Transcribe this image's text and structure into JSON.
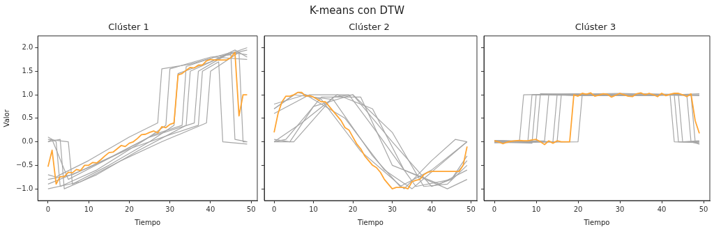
{
  "chart_data": [
    {
      "type": "other",
      "title": "K-means con DTW"
    },
    {
      "type": "line",
      "title": "Clúster 1",
      "xlabel": "Tiempo",
      "ylabel": "Valor",
      "xlim": [
        -2.5,
        51.5
      ],
      "ylim": [
        -1.25,
        2.25
      ],
      "xticks": [
        0,
        10,
        20,
        30,
        40,
        50
      ],
      "yticks": [
        {
          "value": -1,
          "label": "−1.0"
        },
        {
          "value": -0.5,
          "label": "−0.5"
        },
        {
          "value": 0,
          "label": "0.0"
        },
        {
          "value": 0.5,
          "label": "0.5"
        },
        {
          "value": 1,
          "label": "1.0"
        },
        {
          "value": 1.5,
          "label": "1.5"
        },
        {
          "value": 2,
          "label": "2.0"
        }
      ],
      "x": [
        0,
        1,
        2,
        3,
        4,
        5,
        6,
        7,
        8,
        9,
        10,
        11,
        12,
        13,
        14,
        15,
        16,
        17,
        18,
        19,
        20,
        21,
        22,
        23,
        24,
        25,
        26,
        27,
        28,
        29,
        30,
        31,
        32,
        33,
        34,
        35,
        36,
        37,
        38,
        39,
        40,
        41,
        42,
        43,
        44,
        45,
        46,
        47,
        48,
        49
      ],
      "series": [
        {
          "color": "#a6a6a6",
          "x": [
            0,
            2,
            3,
            10,
            20,
            27,
            28,
            35,
            45,
            49
          ],
          "values": [
            -0.7,
            -0.75,
            -0.7,
            -0.4,
            0.1,
            0.4,
            1.55,
            1.65,
            1.9,
            1.85
          ]
        },
        {
          "color": "#a6a6a6",
          "x": [
            0,
            5,
            6,
            15,
            25,
            31,
            32,
            40,
            46,
            49
          ],
          "values": [
            0.05,
            0.0,
            -0.9,
            -0.5,
            0.0,
            0.35,
            1.45,
            1.7,
            1.95,
            1.8
          ]
        },
        {
          "color": "#a6a6a6",
          "x": [
            0,
            3,
            4,
            12,
            22,
            34,
            35,
            44,
            49
          ],
          "values": [
            0.0,
            0.05,
            -1.0,
            -0.7,
            -0.2,
            0.35,
            1.5,
            1.85,
            2.0
          ]
        },
        {
          "color": "#a6a6a6",
          "x": [
            0,
            10,
            20,
            30,
            37,
            38,
            42,
            43,
            49
          ],
          "values": [
            -0.9,
            -0.55,
            -0.15,
            0.15,
            0.35,
            1.5,
            1.7,
            0.0,
            -0.05
          ]
        },
        {
          "color": "#a6a6a6",
          "x": [
            0,
            2,
            3,
            12,
            24,
            29,
            30,
            40,
            45,
            46,
            49
          ],
          "values": [
            0.1,
            0.0,
            -0.95,
            -0.6,
            0.05,
            0.35,
            1.55,
            1.8,
            1.85,
            0.05,
            0.0
          ]
        },
        {
          "color": "#a6a6a6",
          "x": [
            0,
            8,
            18,
            28,
            39,
            40,
            47,
            48,
            49
          ],
          "values": [
            -1.0,
            -0.85,
            -0.4,
            0.0,
            0.4,
            1.5,
            1.9,
            0.0,
            0.0
          ]
        },
        {
          "color": "#a6a6a6",
          "x": [
            0,
            6,
            16,
            26,
            33,
            34,
            41,
            49
          ],
          "values": [
            -0.8,
            -0.7,
            -0.3,
            0.15,
            0.35,
            1.6,
            1.8,
            1.75
          ]
        },
        {
          "color": "#a6a6a6",
          "x": [
            0,
            1,
            5,
            14,
            25,
            36,
            37,
            44,
            49
          ],
          "values": [
            0.0,
            0.05,
            -0.8,
            -0.4,
            0.1,
            0.4,
            1.5,
            1.85,
            1.95
          ]
        },
        {
          "color": "#ffa533",
          "values": [
            -0.53,
            -0.18,
            -0.9,
            -0.74,
            -0.74,
            -0.65,
            -0.66,
            -0.59,
            -0.61,
            -0.5,
            -0.5,
            -0.44,
            -0.45,
            -0.38,
            -0.3,
            -0.23,
            -0.22,
            -0.15,
            -0.08,
            -0.1,
            -0.03,
            0.0,
            0.07,
            0.15,
            0.16,
            0.2,
            0.23,
            0.19,
            0.32,
            0.3,
            0.37,
            0.4,
            1.42,
            1.45,
            1.52,
            1.58,
            1.57,
            1.63,
            1.63,
            1.72,
            1.75,
            1.74,
            1.74,
            1.74,
            1.74,
            1.79,
            1.9,
            0.55,
            1.0,
            1.0
          ]
        }
      ]
    },
    {
      "type": "line",
      "title": "Clúster 2",
      "xlabel": "Tiempo",
      "xlim": [
        -2.5,
        51.5
      ],
      "ylim": [
        -1.25,
        2.25
      ],
      "xticks": [
        0,
        10,
        20,
        30,
        40,
        50
      ],
      "yticks": [
        {
          "value": -1,
          "label": null
        },
        {
          "value": -0.5,
          "label": null
        },
        {
          "value": 0,
          "label": null
        },
        {
          "value": 0.5,
          "label": null
        },
        {
          "value": 1,
          "label": null
        },
        {
          "value": 1.5,
          "label": null
        },
        {
          "value": 2,
          "label": null
        }
      ],
      "tick_labels": "x",
      "x": [
        0,
        1,
        2,
        3,
        4,
        5,
        6,
        7,
        8,
        9,
        10,
        11,
        12,
        13,
        14,
        15,
        16,
        17,
        18,
        19,
        20,
        21,
        22,
        23,
        24,
        25,
        26,
        27,
        28,
        29,
        30,
        31,
        32,
        33,
        34,
        35,
        36,
        37,
        38,
        39,
        40,
        41,
        42,
        43,
        44,
        45,
        46,
        47,
        48,
        49
      ],
      "series": [
        {
          "color": "#a6a6a6",
          "x": [
            0,
            5,
            15,
            25,
            32,
            40,
            49
          ],
          "values": [
            0.7,
            1.0,
            0.9,
            -0.3,
            -0.95,
            -0.6,
            0.0
          ]
        },
        {
          "color": "#a6a6a6",
          "x": [
            0,
            5,
            15,
            20,
            30,
            38,
            44,
            49
          ],
          "values": [
            0.0,
            0.0,
            0.95,
            1.0,
            0.2,
            -0.95,
            -0.9,
            -0.5
          ]
        },
        {
          "color": "#a6a6a6",
          "x": [
            0,
            8,
            18,
            28,
            35,
            42,
            49
          ],
          "values": [
            0.8,
            1.0,
            0.5,
            -0.6,
            -1.0,
            -0.5,
            0.0
          ]
        },
        {
          "color": "#a6a6a6",
          "x": [
            0,
            4,
            10,
            20,
            30,
            40,
            45,
            49
          ],
          "values": [
            0.05,
            0.0,
            0.75,
            1.0,
            0.0,
            -0.95,
            -0.8,
            -0.4
          ]
        },
        {
          "color": "#a6a6a6",
          "x": [
            0,
            3,
            12,
            22,
            30,
            42,
            49
          ],
          "values": [
            0.0,
            0.05,
            0.95,
            0.95,
            -0.5,
            -0.9,
            -0.6
          ]
        },
        {
          "color": "#a6a6a6",
          "x": [
            0,
            6,
            12,
            22,
            33,
            40,
            46,
            49
          ],
          "values": [
            0.7,
            1.05,
            0.9,
            -0.2,
            -1.0,
            -0.4,
            0.05,
            0.0
          ]
        },
        {
          "color": "#a6a6a6",
          "x": [
            0,
            7,
            16,
            25,
            33,
            44,
            49
          ],
          "values": [
            0.0,
            0.4,
            1.0,
            0.7,
            -0.6,
            -1.0,
            -0.8
          ]
        },
        {
          "color": "#a6a6a6",
          "x": [
            0,
            9,
            19,
            27,
            36,
            45,
            49
          ],
          "values": [
            0.6,
            1.0,
            1.0,
            0.1,
            -0.95,
            -0.8,
            -0.3
          ]
        },
        {
          "color": "#ffa533",
          "values": [
            0.2,
            0.6,
            0.85,
            0.97,
            0.97,
            1.0,
            1.05,
            1.05,
            0.97,
            0.98,
            0.95,
            0.9,
            0.85,
            0.85,
            0.75,
            0.65,
            0.55,
            0.45,
            0.3,
            0.25,
            0.1,
            -0.05,
            -0.15,
            -0.3,
            -0.4,
            -0.5,
            -0.55,
            -0.65,
            -0.8,
            -0.9,
            -1.0,
            -0.97,
            -0.97,
            -0.97,
            -1.0,
            -0.85,
            -0.82,
            -0.8,
            -0.7,
            -0.65,
            -0.63,
            -0.63,
            -0.63,
            -0.63,
            -0.63,
            -0.63,
            -0.63,
            -0.63,
            -0.5,
            -0.1
          ]
        }
      ]
    },
    {
      "type": "line",
      "title": "Clúster 3",
      "xlabel": "Tiempo",
      "xlim": [
        -2.5,
        51.5
      ],
      "ylim": [
        -1.25,
        2.25
      ],
      "xticks": [
        0,
        10,
        20,
        30,
        40,
        50
      ],
      "yticks": [
        {
          "value": -1,
          "label": null
        },
        {
          "value": -0.5,
          "label": null
        },
        {
          "value": 0,
          "label": null
        },
        {
          "value": 0.5,
          "label": null
        },
        {
          "value": 1,
          "label": null
        },
        {
          "value": 1.5,
          "label": null
        },
        {
          "value": 2,
          "label": null
        }
      ],
      "tick_labels": "x",
      "x": [
        0,
        1,
        2,
        3,
        4,
        5,
        6,
        7,
        8,
        9,
        10,
        11,
        12,
        13,
        14,
        15,
        16,
        17,
        18,
        19,
        20,
        21,
        22,
        23,
        24,
        25,
        26,
        27,
        28,
        29,
        30,
        31,
        32,
        33,
        34,
        35,
        36,
        37,
        38,
        39,
        40,
        41,
        42,
        43,
        44,
        45,
        46,
        47,
        48,
        49
      ],
      "series": [
        {
          "color": "#a6a6a6",
          "x": [
            0,
            6,
            7,
            20,
            30,
            42,
            43,
            49
          ],
          "values": [
            0.0,
            0.02,
            1.0,
            1.02,
            0.98,
            1.0,
            0.0,
            -0.02
          ]
        },
        {
          "color": "#a6a6a6",
          "x": [
            0,
            8,
            9,
            25,
            44,
            45,
            49
          ],
          "values": [
            0.03,
            0.0,
            1.0,
            0.98,
            1.0,
            0.0,
            0.02
          ]
        },
        {
          "color": "#a6a6a6",
          "x": [
            0,
            10,
            11,
            30,
            46,
            47,
            49
          ],
          "values": [
            -0.02,
            0.0,
            1.02,
            1.0,
            1.0,
            0.0,
            -0.05
          ]
        },
        {
          "color": "#a6a6a6",
          "x": [
            0,
            12,
            13,
            35,
            49
          ],
          "values": [
            0.0,
            0.02,
            1.0,
            1.02,
            1.0
          ]
        },
        {
          "color": "#a6a6a6",
          "x": [
            0,
            15,
            16,
            20,
            40,
            47,
            48,
            49
          ],
          "values": [
            0.02,
            0.0,
            1.0,
            0.98,
            1.0,
            1.0,
            0.0,
            -0.05
          ]
        },
        {
          "color": "#a6a6a6",
          "x": [
            0,
            20,
            21,
            35,
            49
          ],
          "values": [
            -0.02,
            0.0,
            1.0,
            1.0,
            0.98
          ]
        },
        {
          "color": "#a6a6a6",
          "x": [
            0,
            9,
            10,
            30,
            43,
            44,
            49
          ],
          "values": [
            0.0,
            -0.03,
            1.0,
            1.03,
            1.0,
            0.0,
            0.0
          ]
        },
        {
          "color": "#a6a6a6",
          "x": [
            0,
            14,
            15,
            38,
            49
          ],
          "values": [
            0.03,
            0.0,
            1.0,
            0.98,
            1.02
          ]
        },
        {
          "color": "#ffa533",
          "values": [
            0.02,
            0.0,
            -0.04,
            -0.01,
            0.01,
            0.02,
            0.03,
            0.02,
            0.02,
            0.04,
            0.05,
            0.0,
            -0.06,
            0.02,
            -0.03,
            0.02,
            0.0,
            0.0,
            0.0,
            1.0,
            0.97,
            1.03,
            1.01,
            1.04,
            0.97,
            0.99,
            1.02,
            1.01,
            0.95,
            0.99,
            1.03,
            1.0,
            0.97,
            0.96,
            1.02,
            1.04,
            1.0,
            1.03,
            1.0,
            0.96,
            1.03,
            0.98,
            1.01,
            1.03,
            1.03,
            1.0,
            0.96,
            1.02,
            0.45,
            0.18
          ]
        }
      ]
    }
  ]
}
